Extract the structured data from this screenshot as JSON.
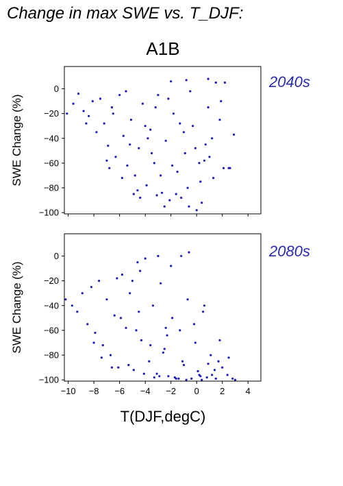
{
  "figure": {
    "title": "Change in max SWE vs. T_DJF:",
    "scenario": "A1B",
    "colors": {
      "points": "#1a1ab4",
      "period_label": "#2a2ab0",
      "frame": "#000000",
      "text": "#000000"
    }
  },
  "chart_data": [
    {
      "type": "scatter",
      "period_label": "2040s",
      "xlabel": "",
      "ylabel": "SWE Change (%)",
      "xlim": [
        -10.3,
        5.0
      ],
      "ylim": [
        -101,
        18
      ],
      "x_ticks": [
        -10,
        -8,
        -6,
        -4,
        -2,
        0,
        2,
        4
      ],
      "x_tick_labels_shown": false,
      "y_ticks": [
        0,
        -20,
        -40,
        -60,
        -80,
        -100
      ],
      "y_tick_labels": [
        "0",
        "−20",
        "−40",
        "−60",
        "−80",
        "−100"
      ],
      "series": [
        {
          "x": [
            -10.1,
            -9.6,
            -9.2,
            -8.8,
            -8.4,
            -8.1,
            -7.8,
            -7.5,
            -7.2,
            -6.9,
            -6.6,
            -6.3,
            -6.0,
            -5.7,
            -5.4,
            -5.1,
            -4.8,
            -4.5,
            -4.2,
            -3.9,
            -3.6,
            -3.3,
            -3.0,
            -2.7,
            -2.4,
            -2.1,
            -1.8,
            -1.5,
            -1.2,
            -0.9,
            -0.6,
            -0.3,
            0.0,
            0.3,
            0.6,
            0.9,
            1.2,
            1.5,
            1.8,
            2.1,
            2.5,
            2.9,
            -7.0,
            -6.5,
            -5.8,
            -5.2,
            -4.6,
            -4.0,
            -3.5,
            -2.8,
            -2.2,
            -1.6,
            -1.0,
            -0.5,
            0.2,
            0.7,
            1.3,
            1.9,
            -4.4,
            -3.2,
            -2.5,
            -1.9,
            -1.3,
            -0.7,
            -0.1,
            0.4,
            1.0,
            -5.5,
            -3.8,
            -2.0,
            -0.8,
            0.9,
            2.2,
            2.6,
            -8.6,
            -6.8,
            -4.9,
            -3.1
          ],
          "y": [
            -20,
            -12,
            -4,
            -18,
            -22,
            -10,
            -35,
            -8,
            -28,
            -46,
            -15,
            -55,
            -5,
            -38,
            -62,
            -25,
            -70,
            -48,
            -12,
            -78,
            -33,
            -60,
            -5,
            -84,
            -42,
            -90,
            -20,
            -67,
            -88,
            -52,
            -95,
            -30,
            -98,
            -75,
            -58,
            -15,
            -40,
            5,
            -25,
            -64,
            -64,
            -37,
            -58,
            -20,
            -72,
            -45,
            -82,
            -30,
            -52,
            -70,
            -8,
            -85,
            -35,
            -2,
            -60,
            -45,
            -72,
            -10,
            -88,
            -15,
            -95,
            -62,
            -28,
            -80,
            -48,
            -92,
            -55,
            -2,
            -40,
            6,
            7,
            8,
            5,
            -64,
            -28,
            -64,
            -85,
            -86
          ]
        }
      ]
    },
    {
      "type": "scatter",
      "period_label": "2080s",
      "xlabel": "T(DJF,degC)",
      "ylabel": "SWE Change (%)",
      "xlim": [
        -10.3,
        5.0
      ],
      "ylim": [
        -101,
        18
      ],
      "x_ticks": [
        -10,
        -8,
        -6,
        -4,
        -2,
        0,
        2,
        4
      ],
      "x_tick_labels": [
        "−10",
        "−8",
        "−6",
        "−4",
        "−2",
        "0",
        "2",
        "4"
      ],
      "y_ticks": [
        0,
        -20,
        -40,
        -60,
        -80,
        -100
      ],
      "y_tick_labels": [
        "0",
        "−20",
        "−40",
        "−60",
        "−80",
        "−100"
      ],
      "series": [
        {
          "x": [
            -10.2,
            -9.7,
            -9.3,
            -8.9,
            -8.5,
            -8.2,
            -7.9,
            -7.6,
            -7.3,
            -7.0,
            -6.7,
            -6.4,
            -6.1,
            -5.8,
            -5.5,
            -5.2,
            -4.9,
            -4.6,
            -4.3,
            -4.0,
            -3.7,
            -3.4,
            -3.1,
            -2.8,
            -2.5,
            -2.2,
            -1.9,
            -1.6,
            -1.3,
            -1.0,
            -0.7,
            -0.4,
            -0.1,
            0.2,
            0.5,
            0.8,
            1.1,
            1.4,
            1.7,
            2.0,
            2.4,
            2.8,
            3.0,
            -7.4,
            -6.6,
            -5.9,
            -5.3,
            -4.7,
            -4.1,
            -3.6,
            -2.9,
            -2.3,
            -1.7,
            -1.1,
            -0.6,
            0.1,
            0.6,
            1.2,
            1.8,
            -4.5,
            -3.3,
            -2.6,
            -2.0,
            -1.4,
            -0.8,
            -0.2,
            0.3,
            0.9,
            1.5,
            -5.0,
            -3.0,
            -1.2,
            0.4,
            2.5,
            -8.0,
            -6.2,
            -4.4,
            -2.4
          ],
          "y": [
            -35,
            -40,
            -45,
            -30,
            -55,
            -25,
            -62,
            -20,
            -72,
            -35,
            -80,
            -48,
            -90,
            -15,
            -58,
            -30,
            -92,
            -5,
            -68,
            -2,
            -85,
            -40,
            -95,
            -22,
            -75,
            -97,
            -50,
            -99,
            -60,
            -88,
            -35,
            -99,
            -70,
            -96,
            -45,
            -98,
            -80,
            -92,
            -85,
            -90,
            -96,
            -99,
            -100,
            -82,
            -90,
            -50,
            -88,
            -60,
            -95,
            -72,
            -97,
            -64,
            -98,
            -85,
            3,
            -93,
            -40,
            -96,
            -68,
            -45,
            -98,
            -78,
            -8,
            -99,
            -100,
            -55,
            -97,
            -87,
            -99,
            -20,
            0,
            0,
            -100,
            -82,
            -70,
            -18,
            -12,
            -58
          ]
        }
      ]
    }
  ]
}
